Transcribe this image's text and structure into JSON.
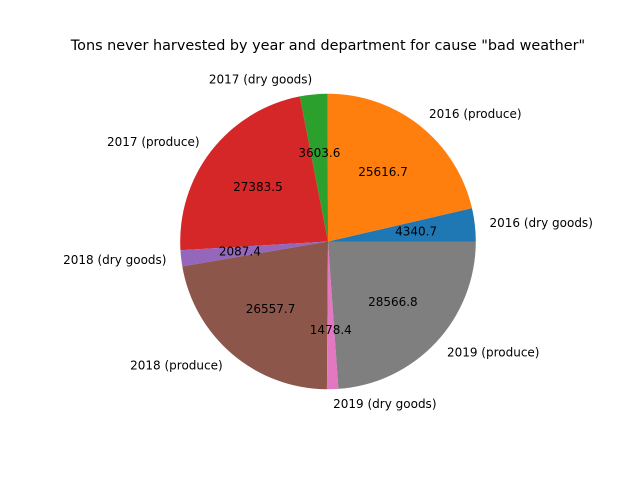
{
  "chart_data": {
    "type": "pie",
    "title": "Tons never harvested by year and department for cause \"bad weather\"",
    "labels": [
      "2016 (dry goods)",
      "2016 (produce)",
      "2017 (dry goods)",
      "2017 (produce)",
      "2018 (dry goods)",
      "2018 (produce)",
      "2019 (dry goods)",
      "2019 (produce)"
    ],
    "values": [
      4340.7,
      25616.7,
      3603.6,
      27383.5,
      2087.4,
      26557.7,
      1478.4,
      28566.8
    ],
    "value_labels": [
      "4340.7",
      "25616.7",
      "3603.6",
      "27383.5",
      "2087.4",
      "26557.7",
      "1478.4",
      "28566.8"
    ],
    "colors": [
      "#1f77b4",
      "#ff7f0e",
      "#2ca02c",
      "#d62728",
      "#9467bd",
      "#8c564b",
      "#e377c2",
      "#7f7f7f"
    ],
    "start_angle_deg": 0,
    "direction": "counterclockwise",
    "legend": "none"
  }
}
